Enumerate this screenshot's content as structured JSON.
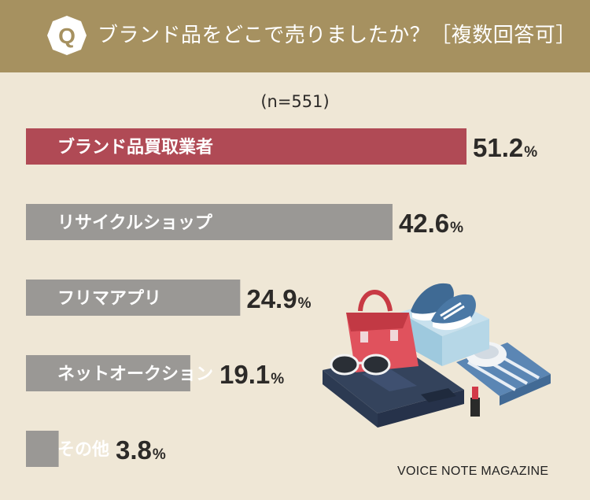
{
  "header": {
    "badge_letter": "Q",
    "question": "ブランド品をどこで売りましたか？［複数回答可］"
  },
  "sample_note": "(n=551)",
  "credit": "VOICE NOTE MAGAZINE",
  "colors": {
    "header_bg": "#a69160",
    "page_bg": "#efe7d6",
    "highlight_bar": "#b04a55",
    "normal_bar": "#9a9895",
    "text": "#2c2a28"
  },
  "illustration": {
    "icon_name": "fashion-items-illustration"
  },
  "chart_data": {
    "type": "bar",
    "orientation": "horizontal",
    "unit": "%",
    "categories": [
      "ブランド品買取業者",
      "リサイクルショップ",
      "フリマアプリ",
      "ネットオークション",
      "その他"
    ],
    "values": [
      51.2,
      42.6,
      24.9,
      19.1,
      3.8
    ],
    "highlight_index": 0,
    "xlim": [
      0,
      51.2
    ],
    "grid": false,
    "legend": "none"
  }
}
